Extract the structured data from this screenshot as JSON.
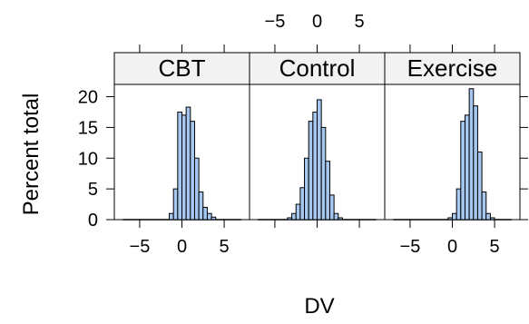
{
  "chart_data": {
    "type": "bar",
    "layout": "trellis-histogram",
    "xlabel": "DV",
    "ylabel": "Percent total",
    "xlim": [
      -8,
      8
    ],
    "ylim": [
      0,
      22
    ],
    "x_ticks": [
      -5,
      0,
      5
    ],
    "y_ticks": [
      0,
      5,
      10,
      15,
      20
    ],
    "bin_width": 0.5,
    "bar_color": "#a6c8f0",
    "strip_color": "#f2f2f2",
    "panels": [
      {
        "name": "CBT",
        "bins": [
          {
            "x0": -1.5,
            "x1": -1.0,
            "value": 1
          },
          {
            "x0": -1.0,
            "x1": -0.5,
            "value": 5
          },
          {
            "x0": -0.5,
            "x1": 0.0,
            "value": 17.5
          },
          {
            "x0": 0.0,
            "x1": 0.5,
            "value": 17
          },
          {
            "x0": 0.5,
            "x1": 1.0,
            "value": 18.3
          },
          {
            "x0": 1.0,
            "x1": 1.5,
            "value": 16
          },
          {
            "x0": 1.5,
            "x1": 2.0,
            "value": 10
          },
          {
            "x0": 2.0,
            "x1": 2.5,
            "value": 4.5
          },
          {
            "x0": 2.5,
            "x1": 3.0,
            "value": 2
          },
          {
            "x0": 3.0,
            "x1": 3.5,
            "value": 1
          },
          {
            "x0": 3.5,
            "x1": 4.0,
            "value": 0.4
          }
        ]
      },
      {
        "name": "Control",
        "bins": [
          {
            "x0": -3.5,
            "x1": -3.0,
            "value": 0.3
          },
          {
            "x0": -3.0,
            "x1": -2.5,
            "value": 1
          },
          {
            "x0": -2.5,
            "x1": -2.0,
            "value": 2.5
          },
          {
            "x0": -2.0,
            "x1": -1.5,
            "value": 5.2
          },
          {
            "x0": -1.5,
            "x1": -1.0,
            "value": 10
          },
          {
            "x0": -1.0,
            "x1": -0.5,
            "value": 16
          },
          {
            "x0": -0.5,
            "x1": 0.0,
            "value": 17.5
          },
          {
            "x0": 0.0,
            "x1": 0.5,
            "value": 19.5
          },
          {
            "x0": 0.5,
            "x1": 1.0,
            "value": 15
          },
          {
            "x0": 1.0,
            "x1": 1.5,
            "value": 9.5
          },
          {
            "x0": 1.5,
            "x1": 2.0,
            "value": 4
          },
          {
            "x0": 2.0,
            "x1": 2.5,
            "value": 1
          },
          {
            "x0": 2.5,
            "x1": 3.0,
            "value": 0.3
          }
        ]
      },
      {
        "name": "Exercise",
        "bins": [
          {
            "x0": -0.5,
            "x1": 0.0,
            "value": 0.3
          },
          {
            "x0": 0.0,
            "x1": 0.5,
            "value": 1
          },
          {
            "x0": 0.5,
            "x1": 1.0,
            "value": 5
          },
          {
            "x0": 1.0,
            "x1": 1.5,
            "value": 16
          },
          {
            "x0": 1.5,
            "x1": 2.0,
            "value": 17
          },
          {
            "x0": 2.0,
            "x1": 2.5,
            "value": 21.3
          },
          {
            "x0": 2.5,
            "x1": 3.0,
            "value": 18.5
          },
          {
            "x0": 3.0,
            "x1": 3.5,
            "value": 11
          },
          {
            "x0": 3.5,
            "x1": 4.0,
            "value": 4.5
          },
          {
            "x0": 4.0,
            "x1": 4.5,
            "value": 1
          },
          {
            "x0": 4.5,
            "x1": 5.0,
            "value": 0.3
          }
        ]
      }
    ]
  }
}
